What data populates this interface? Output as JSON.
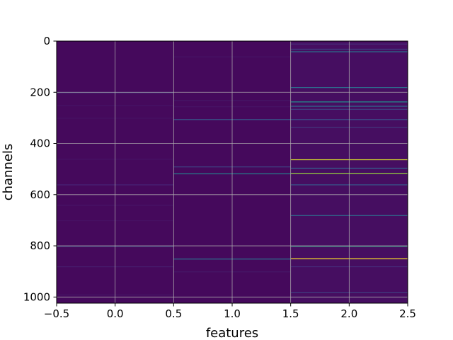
{
  "chart_data": {
    "type": "heatmap",
    "title": "",
    "xlabel": "features",
    "ylabel": "channels",
    "xlim": [
      -0.5,
      2.5
    ],
    "ylim": [
      1024,
      0
    ],
    "y_inverted": true,
    "grid": true,
    "colormap": "viridis",
    "x_ticks": [
      -0.5,
      0.0,
      0.5,
      1.0,
      1.5,
      2.0,
      2.5
    ],
    "x_tick_labels": [
      "−0.5",
      "0.0",
      "0.5",
      "1.0",
      "1.5",
      "2.0",
      "2.5"
    ],
    "y_ticks": [
      0,
      200,
      400,
      600,
      800,
      1000
    ],
    "y_tick_labels": [
      "0",
      "200",
      "400",
      "600",
      "800",
      "1000"
    ],
    "columns": [
      {
        "feature": 0,
        "base": 0.03,
        "highlights": [
          {
            "channel": 200,
            "value": 0.16
          },
          {
            "channel": 250,
            "value": 0.07
          },
          {
            "channel": 300,
            "value": 0.06
          },
          {
            "channel": 460,
            "value": 0.07
          },
          {
            "channel": 560,
            "value": 0.13
          },
          {
            "channel": 640,
            "value": 0.07
          },
          {
            "channel": 700,
            "value": 0.06
          },
          {
            "channel": 800,
            "value": 0.24
          },
          {
            "channel": 880,
            "value": 0.1
          },
          {
            "channel": 990,
            "value": 0.07
          }
        ]
      },
      {
        "feature": 1,
        "base": 0.03,
        "highlights": [
          {
            "channel": 60,
            "value": 0.07
          },
          {
            "channel": 230,
            "value": 0.08
          },
          {
            "channel": 255,
            "value": 0.07
          },
          {
            "channel": 305,
            "value": 0.28
          },
          {
            "channel": 490,
            "value": 0.22
          },
          {
            "channel": 517,
            "value": 0.45
          },
          {
            "channel": 850,
            "value": 0.38
          },
          {
            "channel": 900,
            "value": 0.08
          }
        ]
      },
      {
        "feature": 2,
        "base": 0.05,
        "highlights": [
          {
            "channel": 10,
            "value": 0.15
          },
          {
            "channel": 30,
            "value": 0.2
          },
          {
            "channel": 40,
            "value": 0.4
          },
          {
            "channel": 180,
            "value": 0.35
          },
          {
            "channel": 236,
            "value": 0.5
          },
          {
            "channel": 253,
            "value": 0.35
          },
          {
            "channel": 265,
            "value": 0.2
          },
          {
            "channel": 305,
            "value": 0.25
          },
          {
            "channel": 335,
            "value": 0.18
          },
          {
            "channel": 462,
            "value": 0.95
          },
          {
            "channel": 495,
            "value": 0.3
          },
          {
            "channel": 515,
            "value": 0.85
          },
          {
            "channel": 560,
            "value": 0.28
          },
          {
            "channel": 680,
            "value": 0.35
          },
          {
            "channel": 800,
            "value": 0.6
          },
          {
            "channel": 849,
            "value": 1.0
          },
          {
            "channel": 880,
            "value": 0.15
          },
          {
            "channel": 980,
            "value": 0.2
          }
        ]
      }
    ]
  }
}
